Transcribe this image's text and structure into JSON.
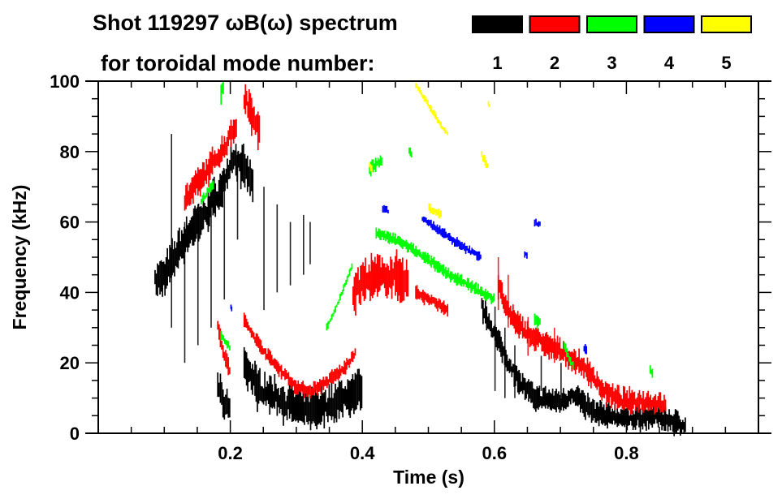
{
  "chart_data": {
    "type": "heatmap",
    "title_line1": "Shot 119297 ωB(ω) spectrum",
    "title_line2": "for toroidal mode number:",
    "xlabel": "Time (s)",
    "ylabel": "Frequency (kHz)",
    "xlim": [
      0.0,
      1.0
    ],
    "ylim": [
      0,
      100
    ],
    "x_ticks": [
      {
        "value": 0.2,
        "label": "0.2"
      },
      {
        "value": 0.4,
        "label": "0.4"
      },
      {
        "value": 0.6,
        "label": "0.6"
      },
      {
        "value": 0.8,
        "label": "0.8"
      }
    ],
    "x_minor_step": 0.05,
    "y_ticks": [
      {
        "value": 0,
        "label": "0"
      },
      {
        "value": 20,
        "label": "20"
      },
      {
        "value": 40,
        "label": "40"
      },
      {
        "value": 60,
        "label": "60"
      },
      {
        "value": 80,
        "label": "80"
      },
      {
        "value": 100,
        "label": "100"
      }
    ],
    "y_minor_step": 5,
    "legend": {
      "placement": "top-right",
      "entries": [
        {
          "label": "1",
          "color": "#000000"
        },
        {
          "label": "2",
          "color": "#ff0000"
        },
        {
          "label": "3",
          "color": "#00ff00"
        },
        {
          "label": "4",
          "color": "#0000ff"
        },
        {
          "label": "5",
          "color": "#ffff00"
        }
      ]
    },
    "series": [
      {
        "name": "n=1",
        "color": "#000000",
        "traces": [
          {
            "points": [
              [
                0.085,
                43
              ],
              [
                0.1,
                45
              ],
              [
                0.12,
                52
              ],
              [
                0.14,
                58
              ],
              [
                0.16,
                62
              ],
              [
                0.18,
                68
              ],
              [
                0.2,
                74
              ]
            ],
            "width_khz": 8
          },
          {
            "points": [
              [
                0.2,
                78
              ],
              [
                0.215,
                76
              ],
              [
                0.225,
                74
              ],
              [
                0.235,
                70
              ]
            ],
            "width_khz": 8
          },
          {
            "points": [
              [
                0.18,
                14
              ],
              [
                0.19,
                8
              ],
              [
                0.2,
                8
              ]
            ],
            "width_khz": 6
          },
          {
            "points": [
              [
                0.22,
                20
              ],
              [
                0.24,
                13
              ],
              [
                0.27,
                10
              ],
              [
                0.3,
                7
              ],
              [
                0.33,
                7
              ],
              [
                0.36,
                9
              ],
              [
                0.39,
                12
              ],
              [
                0.4,
                13
              ]
            ],
            "width_khz": 8
          },
          {
            "points": [
              [
                0.58,
                36
              ],
              [
                0.6,
                28
              ],
              [
                0.62,
                20
              ],
              [
                0.64,
                14
              ],
              [
                0.66,
                10
              ],
              [
                0.7,
                9
              ],
              [
                0.72,
                11
              ],
              [
                0.75,
                6
              ],
              [
                0.8,
                4
              ],
              [
                0.84,
                5
              ],
              [
                0.86,
                4
              ],
              [
                0.89,
                2
              ]
            ],
            "width_khz": 5
          }
        ],
        "streaks": [
          {
            "t": 0.11,
            "f_range": [
              30,
              85
            ]
          },
          {
            "t": 0.13,
            "f_range": [
              20,
              60
            ]
          },
          {
            "t": 0.15,
            "f_range": [
              25,
              65
            ]
          },
          {
            "t": 0.17,
            "f_range": [
              30,
              70
            ]
          },
          {
            "t": 0.19,
            "f_range": [
              38,
              75
            ]
          },
          {
            "t": 0.21,
            "f_range": [
              55,
              80
            ]
          },
          {
            "t": 0.25,
            "f_range": [
              35,
              70
            ]
          },
          {
            "t": 0.27,
            "f_range": [
              40,
              65
            ]
          },
          {
            "t": 0.29,
            "f_range": [
              42,
              60
            ]
          },
          {
            "t": 0.31,
            "f_range": [
              45,
              62
            ]
          },
          {
            "t": 0.32,
            "f_range": [
              48,
              60
            ]
          },
          {
            "t": 0.6,
            "f_range": [
              12,
              36
            ]
          },
          {
            "t": 0.615,
            "f_range": [
              10,
              30
            ]
          },
          {
            "t": 0.63,
            "f_range": [
              10,
              25
            ]
          },
          {
            "t": 0.67,
            "f_range": [
              12,
              22
            ]
          },
          {
            "t": 0.7,
            "f_range": [
              10,
              20
            ]
          }
        ]
      },
      {
        "name": "n=2",
        "color": "#ff0000",
        "traces": [
          {
            "points": [
              [
                0.13,
                66
              ],
              [
                0.15,
                71
              ],
              [
                0.17,
                76
              ],
              [
                0.19,
                81
              ],
              [
                0.2,
                85
              ],
              [
                0.21,
                88
              ]
            ],
            "width_khz": 6
          },
          {
            "points": [
              [
                0.22,
                95
              ],
              [
                0.235,
                90
              ],
              [
                0.245,
                85
              ]
            ],
            "width_khz": 8
          },
          {
            "points": [
              [
                0.18,
                30
              ],
              [
                0.19,
                22
              ],
              [
                0.2,
                17
              ]
            ],
            "width_khz": 4
          },
          {
            "points": [
              [
                0.22,
                32
              ],
              [
                0.24,
                26
              ],
              [
                0.26,
                21
              ],
              [
                0.28,
                17
              ],
              [
                0.3,
                13
              ],
              [
                0.32,
                12
              ],
              [
                0.34,
                14
              ],
              [
                0.37,
                18
              ],
              [
                0.39,
                23
              ]
            ],
            "width_khz": 3
          },
          {
            "points": [
              [
                0.385,
                40
              ],
              [
                0.4,
                43
              ],
              [
                0.42,
                44
              ],
              [
                0.44,
                45
              ],
              [
                0.46,
                44
              ],
              [
                0.47,
                42
              ]
            ],
            "width_khz": 9
          },
          {
            "points": [
              [
                0.48,
                40
              ],
              [
                0.5,
                38
              ],
              [
                0.53,
                35
              ]
            ],
            "width_khz": 3
          },
          {
            "points": [
              [
                0.605,
                42
              ],
              [
                0.62,
                34
              ],
              [
                0.64,
                30
              ],
              [
                0.66,
                27
              ],
              [
                0.7,
                23
              ],
              [
                0.74,
                18
              ],
              [
                0.76,
                13
              ],
              [
                0.78,
                10
              ],
              [
                0.8,
                9
              ],
              [
                0.83,
                9
              ],
              [
                0.86,
                8
              ]
            ],
            "width_khz": 5
          }
        ],
        "streaks": [
          {
            "t": 0.605,
            "f_range": [
              35,
              50
            ]
          },
          {
            "t": 0.62,
            "f_range": [
              30,
              45
            ]
          },
          {
            "t": 0.65,
            "f_range": [
              22,
              33
            ]
          },
          {
            "t": 0.69,
            "f_range": [
              20,
              30
            ]
          }
        ]
      },
      {
        "name": "n=3",
        "color": "#00ff00",
        "traces": [
          {
            "points": [
              [
                0.185,
                96
              ],
              [
                0.19,
                100
              ]
            ],
            "width_khz": 5
          },
          {
            "points": [
              [
                0.155,
                66
              ],
              [
                0.175,
                71
              ]
            ],
            "width_khz": 2
          },
          {
            "points": [
              [
                0.185,
                28
              ],
              [
                0.2,
                24
              ]
            ],
            "width_khz": 2
          },
          {
            "points": [
              [
                0.345,
                30
              ],
              [
                0.36,
                36
              ],
              [
                0.385,
                48
              ]
            ],
            "width_khz": 1.5
          },
          {
            "points": [
              [
                0.41,
                75
              ],
              [
                0.43,
                78
              ]
            ],
            "width_khz": 3
          },
          {
            "points": [
              [
                0.47,
                80
              ],
              [
                0.475,
                79
              ]
            ],
            "width_khz": 2
          },
          {
            "points": [
              [
                0.42,
                57
              ],
              [
                0.46,
                54
              ],
              [
                0.5,
                49
              ],
              [
                0.54,
                44
              ],
              [
                0.56,
                42
              ],
              [
                0.58,
                40
              ],
              [
                0.6,
                38
              ]
            ],
            "width_khz": 2.5
          },
          {
            "points": [
              [
                0.66,
                32
              ],
              [
                0.67,
                31
              ]
            ],
            "width_khz": 3
          },
          {
            "points": [
              [
                0.705,
                25
              ],
              [
                0.72,
                18
              ]
            ],
            "width_khz": 2
          },
          {
            "points": [
              [
                0.835,
                18
              ],
              [
                0.84,
                16
              ]
            ],
            "width_khz": 2
          }
        ],
        "streaks": []
      },
      {
        "name": "n=4",
        "color": "#0000ff",
        "traces": [
          {
            "points": [
              [
                0.43,
                64
              ],
              [
                0.44,
                63
              ]
            ],
            "width_khz": 2
          },
          {
            "points": [
              [
                0.49,
                61
              ],
              [
                0.52,
                57
              ],
              [
                0.55,
                53
              ],
              [
                0.58,
                50
              ]
            ],
            "width_khz": 2
          },
          {
            "points": [
              [
                0.66,
                60
              ],
              [
                0.67,
                59
              ]
            ],
            "width_khz": 2
          },
          {
            "points": [
              [
                0.735,
                24
              ],
              [
                0.74,
                23
              ]
            ],
            "width_khz": 2
          },
          {
            "points": [
              [
                0.2,
                36
              ],
              [
                0.202,
                35
              ]
            ],
            "width_khz": 1.5
          },
          {
            "points": [
              [
                0.645,
                51
              ],
              [
                0.65,
                50
              ]
            ],
            "width_khz": 1.5
          }
        ],
        "streaks": []
      },
      {
        "name": "n=5",
        "color": "#ffff00",
        "traces": [
          {
            "points": [
              [
                0.48,
                99
              ],
              [
                0.5,
                93
              ],
              [
                0.52,
                87
              ],
              [
                0.53,
                85
              ]
            ],
            "width_khz": 1.5
          },
          {
            "points": [
              [
                0.5,
                64
              ],
              [
                0.52,
                62
              ]
            ],
            "width_khz": 2
          },
          {
            "points": [
              [
                0.58,
                79
              ],
              [
                0.585,
                77
              ],
              [
                0.59,
                76
              ]
            ],
            "width_khz": 2
          },
          {
            "points": [
              [
                0.59,
                94
              ],
              [
                0.592,
                92
              ]
            ],
            "width_khz": 1.5
          },
          {
            "points": [
              [
                0.41,
                76
              ],
              [
                0.415,
                75
              ]
            ],
            "width_khz": 1.5
          }
        ],
        "streaks": []
      }
    ]
  }
}
